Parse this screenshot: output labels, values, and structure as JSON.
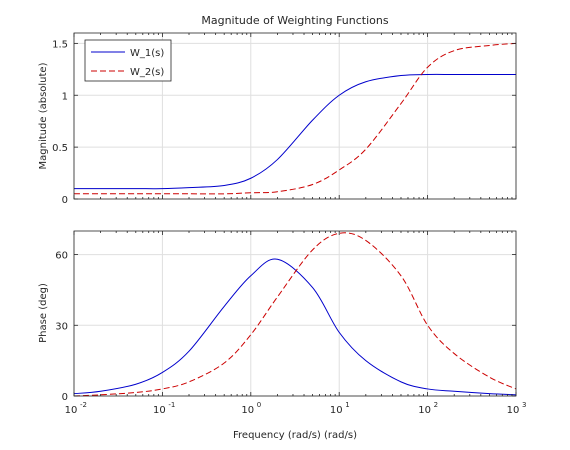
{
  "chart_data": [
    {
      "type": "line",
      "title": "Magnitude of Weighting Functions",
      "xlabel": "",
      "ylabel": "Magnitude (absolute)",
      "xscale": "log",
      "xlim": [
        0.01,
        1000
      ],
      "ylim": [
        0,
        1.6
      ],
      "yticks": [
        0,
        0.5,
        1,
        1.5
      ],
      "ytick_labels": [
        "0",
        "0.5",
        "1",
        "1.5"
      ],
      "grid": true,
      "legend_position": "top-left",
      "x": [
        0.01,
        0.02,
        0.05,
        0.1,
        0.2,
        0.5,
        1,
        2,
        5,
        10,
        20,
        50,
        100,
        200,
        500,
        1000
      ],
      "series": [
        {
          "name": "W_1(s)",
          "color": "#0000cc",
          "style": "solid",
          "values": [
            0.1,
            0.1,
            0.1,
            0.1,
            0.11,
            0.13,
            0.2,
            0.38,
            0.76,
            1.0,
            1.13,
            1.19,
            1.2,
            1.2,
            1.2,
            1.2
          ]
        },
        {
          "name": "W_2(s)",
          "color": "#cc0000",
          "style": "dashed",
          "values": [
            0.05,
            0.05,
            0.05,
            0.05,
            0.05,
            0.05,
            0.06,
            0.07,
            0.14,
            0.28,
            0.48,
            0.92,
            1.27,
            1.43,
            1.48,
            1.5
          ]
        }
      ]
    },
    {
      "type": "line",
      "title": "",
      "xlabel": "Frequency (rad/s) (rad/s)",
      "ylabel": "Phase (deg)",
      "xscale": "log",
      "xlim": [
        0.01,
        1000
      ],
      "ylim": [
        0,
        70
      ],
      "yticks": [
        0,
        30,
        60
      ],
      "ytick_labels": [
        "0",
        "30",
        "60"
      ],
      "xticks": [
        0.01,
        0.1,
        1,
        10,
        100,
        1000
      ],
      "xtick_labels": [
        [
          "10",
          "-2"
        ],
        [
          "10",
          "-1"
        ],
        [
          "10",
          "0"
        ],
        [
          "10",
          "1"
        ],
        [
          "10",
          "2"
        ],
        [
          "10",
          "3"
        ]
      ],
      "grid": true,
      "x": [
        0.01,
        0.02,
        0.05,
        0.1,
        0.2,
        0.5,
        1,
        2,
        5,
        10,
        20,
        50,
        100,
        200,
        500,
        1000
      ],
      "series": [
        {
          "name": "W_1(s)",
          "color": "#0000cc",
          "style": "solid",
          "values": [
            1,
            2,
            5,
            10,
            19,
            38,
            51,
            58,
            46,
            27,
            15,
            6,
            3,
            2,
            1,
            0.5
          ]
        },
        {
          "name": "W_2(s)",
          "color": "#cc0000",
          "style": "dashed",
          "values": [
            0,
            0.5,
            1.5,
            3,
            6,
            14,
            26,
            42,
            62,
            69,
            66,
            51,
            30,
            18,
            8,
            3
          ]
        }
      ]
    }
  ]
}
